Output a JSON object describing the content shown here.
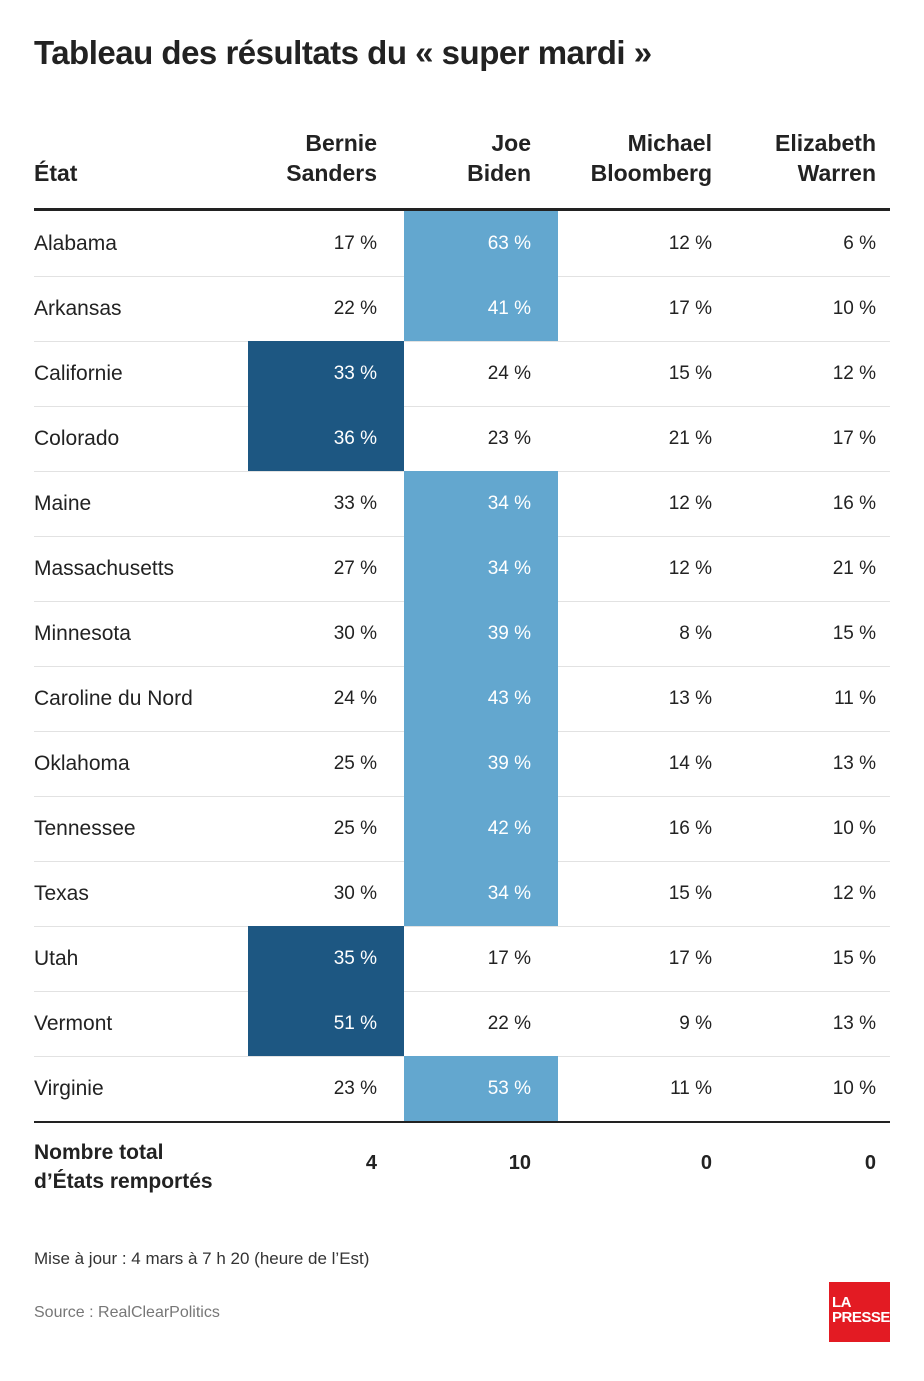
{
  "title": "Tableau des résultats du « super mardi »",
  "colors": {
    "sanders_win": "#1d5782",
    "biden_win": "#63a7cf",
    "rule": "#222222",
    "logo": "#e31b23"
  },
  "headers": {
    "state": "État",
    "sanders_line1": "Bernie",
    "sanders_line2": "Sanders",
    "biden_line1": "Joe",
    "biden_line2": "Biden",
    "bloomberg_line1": "Michael",
    "bloomberg_line2": "Bloomberg",
    "warren_line1": "Elizabeth",
    "warren_line2": "Warren"
  },
  "chart_data": {
    "type": "table",
    "title": "Tableau des résultats du « super mardi »",
    "columns": [
      "État",
      "Bernie Sanders",
      "Joe Biden",
      "Michael Bloomberg",
      "Elizabeth Warren"
    ],
    "rows": [
      {
        "state": "Alabama",
        "values": [
          "17 %",
          "63 %",
          "12 %",
          "6 %"
        ],
        "winner": "biden"
      },
      {
        "state": "Arkansas",
        "values": [
          "22 %",
          "41 %",
          "17 %",
          "10 %"
        ],
        "winner": "biden"
      },
      {
        "state": "Californie",
        "values": [
          "33 %",
          "24 %",
          "15 %",
          "12 %"
        ],
        "winner": "sanders"
      },
      {
        "state": "Colorado",
        "values": [
          "36 %",
          "23 %",
          "21 %",
          "17 %"
        ],
        "winner": "sanders"
      },
      {
        "state": "Maine",
        "values": [
          "33 %",
          "34 %",
          "12 %",
          "16 %"
        ],
        "winner": "biden"
      },
      {
        "state": "Massachusetts",
        "values": [
          "27 %",
          "34 %",
          "12 %",
          "21 %"
        ],
        "winner": "biden"
      },
      {
        "state": "Minnesota",
        "values": [
          "30 %",
          "39 %",
          "8 %",
          "15 %"
        ],
        "winner": "biden"
      },
      {
        "state": "Caroline du Nord",
        "values": [
          "24 %",
          "43 %",
          "13 %",
          "11 %"
        ],
        "winner": "biden"
      },
      {
        "state": "Oklahoma",
        "values": [
          "25 %",
          "39 %",
          "14 %",
          "13 %"
        ],
        "winner": "biden"
      },
      {
        "state": "Tennessee",
        "values": [
          "25 %",
          "42 %",
          "16 %",
          "10 %"
        ],
        "winner": "biden"
      },
      {
        "state": "Texas",
        "values": [
          "30 %",
          "34 %",
          "15 %",
          "12 %"
        ],
        "winner": "biden"
      },
      {
        "state": "Utah",
        "values": [
          "35 %",
          "17 %",
          "17 %",
          "15 %"
        ],
        "winner": "sanders"
      },
      {
        "state": "Vermont",
        "values": [
          "51 %",
          "22 %",
          "9 %",
          "13 %"
        ],
        "winner": "sanders"
      },
      {
        "state": "Virginie",
        "values": [
          "23 %",
          "53 %",
          "11 %",
          "10 %"
        ],
        "winner": "biden"
      }
    ],
    "totals": {
      "label_line1": "Nombre total",
      "label_line2": "d’États remportés",
      "values": [
        "4",
        "10",
        "0",
        "0"
      ]
    }
  },
  "footer": {
    "note": "Mise à jour : 4 mars à 7 h 20 (heure de l’Est)",
    "source": "Source : RealClearPolitics",
    "logo_line1": "LA",
    "logo_line2": "PRESSE"
  }
}
